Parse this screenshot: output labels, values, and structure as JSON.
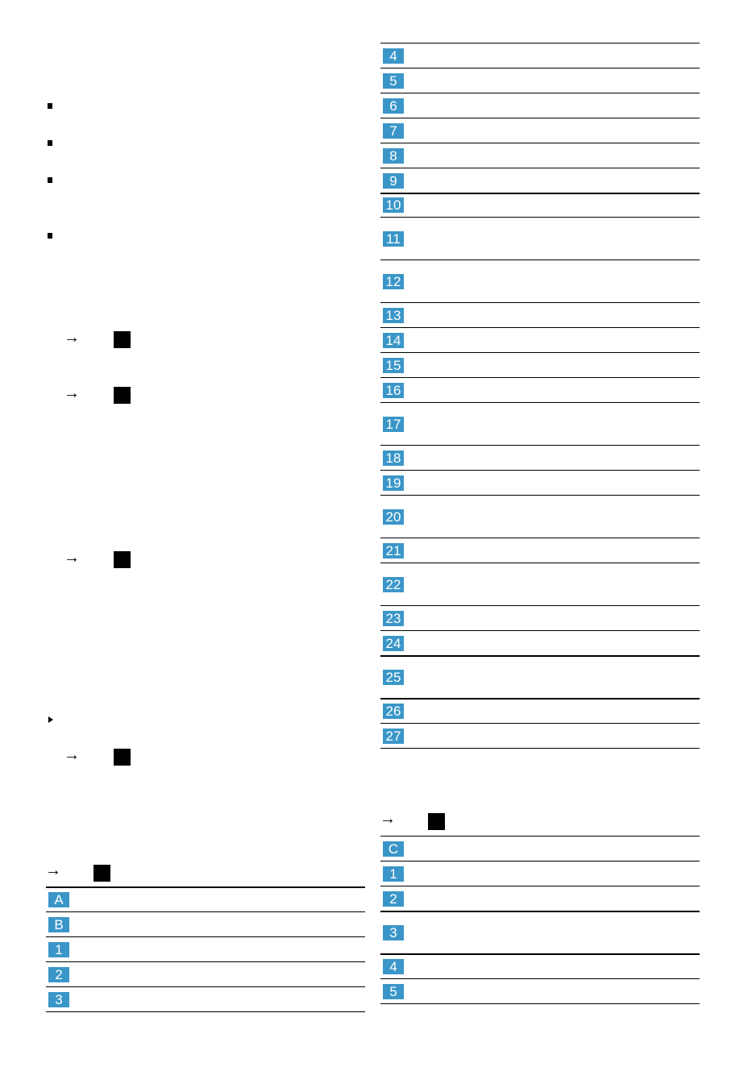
{
  "left": {
    "steps": [
      "→",
      "→",
      "→",
      "→"
    ],
    "table": {
      "arrow": "→",
      "rows": [
        "A",
        "B",
        "1",
        "2",
        "3"
      ]
    }
  },
  "right": {
    "table1": {
      "rows": [
        "4",
        "5",
        "6",
        "7",
        "8",
        "9",
        "10",
        "11",
        "12",
        "13",
        "14",
        "15",
        "16",
        "17",
        "18",
        "19",
        "20",
        "21",
        "22",
        "23",
        "24",
        "25",
        "26",
        "27"
      ]
    },
    "table2": {
      "arrow": "→",
      "rows": [
        "C",
        "1",
        "2",
        "3",
        "4",
        "5"
      ]
    }
  }
}
